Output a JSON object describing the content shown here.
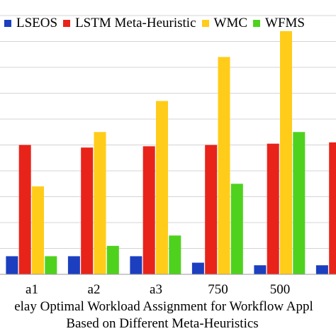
{
  "chart_data": {
    "type": "bar",
    "categories": [
      "a1",
      "a2",
      "a3",
      "750",
      "500",
      ""
    ],
    "series": [
      {
        "name": "LSEOS",
        "color": "#1b3fbf",
        "values": [
          0.7,
          0.7,
          0.7,
          0.45,
          0.35,
          0.35
        ]
      },
      {
        "name": "LSTM Meta-Heuristic",
        "color": "#e8231a",
        "values": [
          5.0,
          4.9,
          4.95,
          5.0,
          5.05,
          5.1
        ]
      },
      {
        "name": "WMC",
        "color": "#ffcc1a",
        "values": [
          3.4,
          5.5,
          6.7,
          8.4,
          9.4,
          null
        ]
      },
      {
        "name": "WFMS",
        "color": "#4fd21e",
        "values": [
          0.7,
          1.1,
          1.5,
          3.5,
          5.5,
          null
        ]
      }
    ],
    "xlabel_lines": [
      "elay Optimal Workload Assignment for Workflow Appl",
      "Based on Different Meta-Heuristics"
    ],
    "ylim": [
      0,
      10
    ],
    "grid": true,
    "legend_position": "top"
  }
}
